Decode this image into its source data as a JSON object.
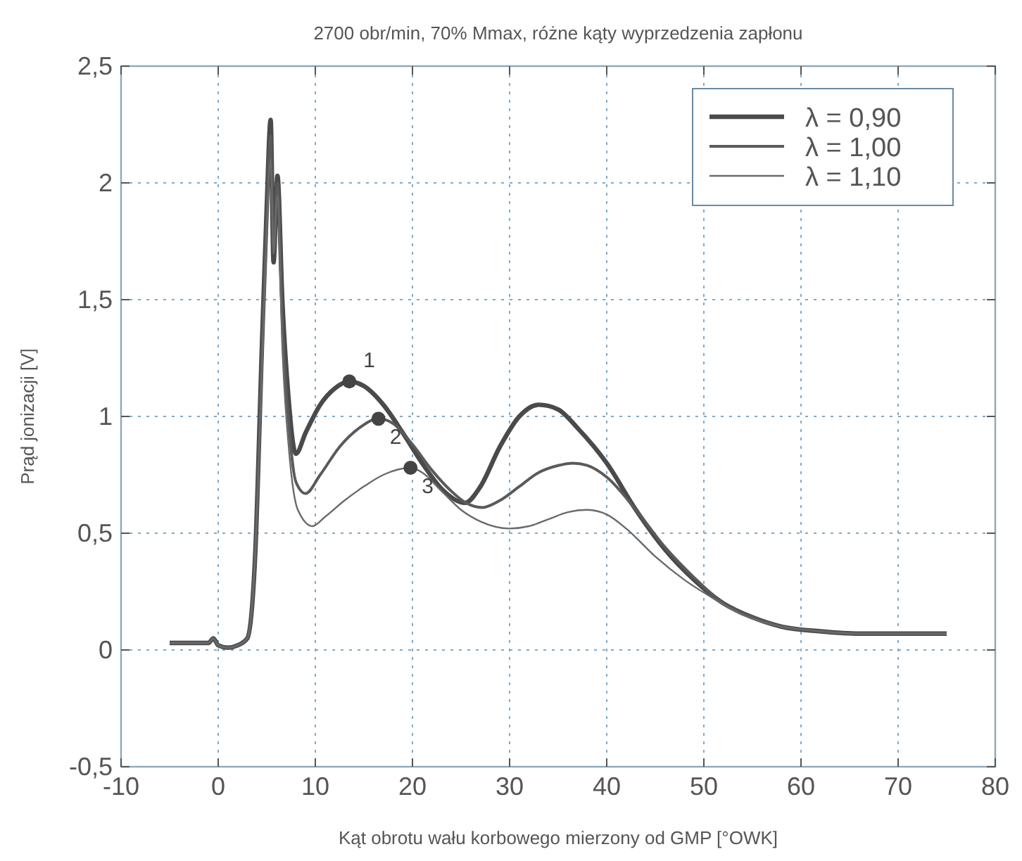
{
  "chart_data": {
    "type": "line",
    "title": "2700 obr/min, 70% Mmax, różne kąty wyprzedzenia zapłonu",
    "xlabel": "Kąt obrotu wału korbowego mierzony od GMP [°OWK]",
    "ylabel": "Prąd jonizacji [V]",
    "xlim": [
      -10,
      80
    ],
    "xticks": [
      -10,
      0,
      10,
      20,
      30,
      40,
      50,
      60,
      70,
      80
    ],
    "ylim": [
      -0.5,
      2.5
    ],
    "yticks": [
      {
        "value": -0.5,
        "label": "-0,5"
      },
      0,
      {
        "value": 0.5,
        "label": "0,5"
      },
      1,
      {
        "value": 1.5,
        "label": "1,5"
      },
      2,
      {
        "value": 2.5,
        "label": "2,5"
      }
    ],
    "grid": true,
    "legend": "top right",
    "line_style": "solid",
    "marker": "none",
    "series": [
      {
        "name": "λ = 0,90",
        "color": "#4a4a4a",
        "x": [
          -5,
          -3,
          -1,
          -0.5,
          0,
          1,
          2,
          3,
          3.8,
          4.5,
          5,
          5.4,
          5.7,
          6.1,
          6.6,
          7.2,
          8,
          9,
          10.5,
          12,
          13.5,
          15,
          17,
          19,
          21,
          23,
          25.4,
          27,
          29,
          31,
          33,
          35,
          37,
          40,
          43,
          46,
          49,
          52,
          55,
          58,
          62,
          66,
          70,
          75
        ],
        "values": [
          0.03,
          0.03,
          0.03,
          0.05,
          0.02,
          0.01,
          0.02,
          0.05,
          0.4,
          1.3,
          1.9,
          2.27,
          1.66,
          2.03,
          1.5,
          1.1,
          0.84,
          0.93,
          1.05,
          1.12,
          1.15,
          1.13,
          1.05,
          0.93,
          0.8,
          0.69,
          0.63,
          0.7,
          0.87,
          1.0,
          1.05,
          1.03,
          0.95,
          0.8,
          0.6,
          0.43,
          0.3,
          0.2,
          0.14,
          0.1,
          0.08,
          0.07,
          0.07,
          0.07
        ]
      },
      {
        "name": "λ = 1,00",
        "color": "#5a5a5a",
        "x": [
          -5,
          -3,
          -1,
          -0.5,
          0,
          1,
          2,
          3,
          3.8,
          4.5,
          5,
          5.4,
          5.7,
          6.1,
          6.6,
          7.3,
          8,
          9,
          10.5,
          12.5,
          14.5,
          16.5,
          18,
          20,
          22,
          24,
          25.5,
          27.2,
          29,
          31,
          33,
          35,
          36.5,
          38,
          40,
          43,
          46,
          49,
          52,
          55,
          58,
          62,
          66,
          70,
          75
        ],
        "values": [
          0.03,
          0.03,
          0.03,
          0.05,
          0.02,
          0.01,
          0.02,
          0.05,
          0.4,
          1.25,
          1.85,
          2.2,
          1.7,
          2.0,
          1.4,
          0.95,
          0.72,
          0.67,
          0.75,
          0.87,
          0.95,
          0.99,
          0.97,
          0.88,
          0.77,
          0.68,
          0.63,
          0.61,
          0.64,
          0.7,
          0.76,
          0.79,
          0.8,
          0.79,
          0.74,
          0.6,
          0.44,
          0.31,
          0.2,
          0.14,
          0.1,
          0.08,
          0.07,
          0.07,
          0.07
        ]
      },
      {
        "name": "λ = 1,10",
        "color": "#6a6a6a",
        "x": [
          -5,
          -3,
          -1,
          -0.5,
          0,
          1,
          2,
          3,
          3.8,
          4.5,
          5,
          5.4,
          5.7,
          6.1,
          6.6,
          7.3,
          8.2,
          9.7,
          11,
          13,
          15,
          17,
          19.8,
          21,
          23,
          25,
          27,
          30,
          32,
          34,
          36,
          38,
          40,
          42,
          45,
          48,
          51,
          54,
          58,
          62,
          66,
          70,
          75
        ],
        "values": [
          0.03,
          0.03,
          0.03,
          0.05,
          0.02,
          0.01,
          0.02,
          0.05,
          0.4,
          1.2,
          1.8,
          2.1,
          1.7,
          1.95,
          1.3,
          0.85,
          0.6,
          0.53,
          0.57,
          0.64,
          0.7,
          0.75,
          0.78,
          0.76,
          0.68,
          0.6,
          0.55,
          0.52,
          0.53,
          0.56,
          0.59,
          0.6,
          0.58,
          0.52,
          0.4,
          0.3,
          0.22,
          0.15,
          0.1,
          0.08,
          0.07,
          0.07,
          0.07
        ]
      },
      {
        "type": "scatter",
        "color": "#444444",
        "marker": "circle",
        "x": [
          13.5,
          16.5,
          19.8
        ],
        "values": [
          1.15,
          0.99,
          0.78
        ]
      }
    ],
    "annotations": [
      {
        "text": "1",
        "x": 13.5,
        "y": 1.15
      },
      {
        "text": "2",
        "x": 16.5,
        "y": 0.99
      },
      {
        "text": "3",
        "x": 19.8,
        "y": 0.78
      }
    ]
  }
}
